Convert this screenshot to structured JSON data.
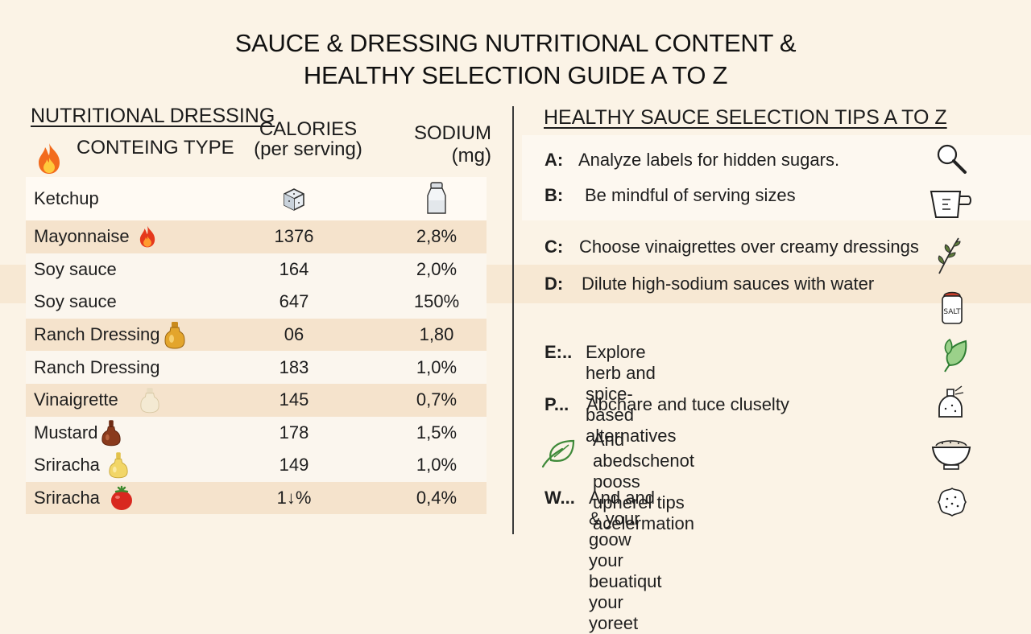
{
  "title": {
    "line1": "SAUCE & DRESSING NUTRITIONAL CONTENT &",
    "line2": "HEALTHY SELECTION GUIDE A TO Z"
  },
  "left": {
    "heading_line1": "NUTRITIONAL DRESSING",
    "heading_line2": "CONTEING TYPE",
    "cal_header_1": "CALORIES",
    "cal_header_2": "(per serving)",
    "sod_header_1": "SODIUM",
    "sod_header_2": "(mg)",
    "rows": [
      {
        "name": "Ketchup",
        "calories": "",
        "sodium": "",
        "icon": "none"
      },
      {
        "name": "Mayonnaise",
        "calories": "1376",
        "sodium": "2,8%",
        "icon": "flame-icon"
      },
      {
        "name": "Soy sauce",
        "calories": "164",
        "sodium": "2,0%",
        "icon": "none"
      },
      {
        "name": "Soy sauce",
        "calories": "647",
        "sodium": "150%",
        "icon": "none"
      },
      {
        "name": "Ranch Dressing",
        "calories": "06",
        "sodium": "1,80",
        "icon": "amber-bottle-icon"
      },
      {
        "name": "Ranch Dressing",
        "calories": "183",
        "sodium": "1,0%",
        "icon": "none"
      },
      {
        "name": "Vinaigrette",
        "calories": "145",
        "sodium": "0,7%",
        "icon": "cream-bottle-icon"
      },
      {
        "name": "Mustard",
        "calories": "178",
        "sodium": "1,5%",
        "icon": "brown-bottle-icon"
      },
      {
        "name": "Sriracha",
        "calories": "149",
        "sodium": "1,0%",
        "icon": "yellow-bottle-icon"
      },
      {
        "name": "Sriracha",
        "calories": "1↓%",
        "sodium": "0,4%",
        "icon": "tomato-icon"
      }
    ]
  },
  "right": {
    "heading": "HEALTHY SAUCE SELECTION TIPS A TO Z",
    "tips": [
      {
        "key": "A:",
        "text": "Analyze labels for hidden sugars.",
        "icon": "magnifier-icon"
      },
      {
        "key": "B:",
        "text": "Be mindful of serving sizes",
        "icon": "measuring-cup-icon"
      },
      {
        "key": "C:",
        "text": "Choose vinaigrettes over creamy dressings",
        "icon": "herb-sprig-icon"
      },
      {
        "key": "D:",
        "text": "Dilute high-sodium sauces with water",
        "icon": "salt-shaker-icon"
      },
      {
        "key": "E:..",
        "text": "Explore herb and spice-based\nalternatives",
        "icon": "leaf-icon"
      },
      {
        "key": "P...",
        "text": "Abchare and tuce cluselty",
        "icon": "spice-jar-icon"
      },
      {
        "key": "",
        "text": "And abedschenot pooss upherel tips\nacelermation",
        "icon": "bowl-icon"
      },
      {
        "key": "W...",
        "text": "And and & your goow your beuatiqut\nyour yoreet",
        "icon": "cracker-icon"
      }
    ],
    "leaf_label_icon": "green-leaf-icon"
  },
  "colors": {
    "background": "#fbf3e6",
    "row_alt": "#f5e3cc",
    "text": "#1e1e1e"
  }
}
